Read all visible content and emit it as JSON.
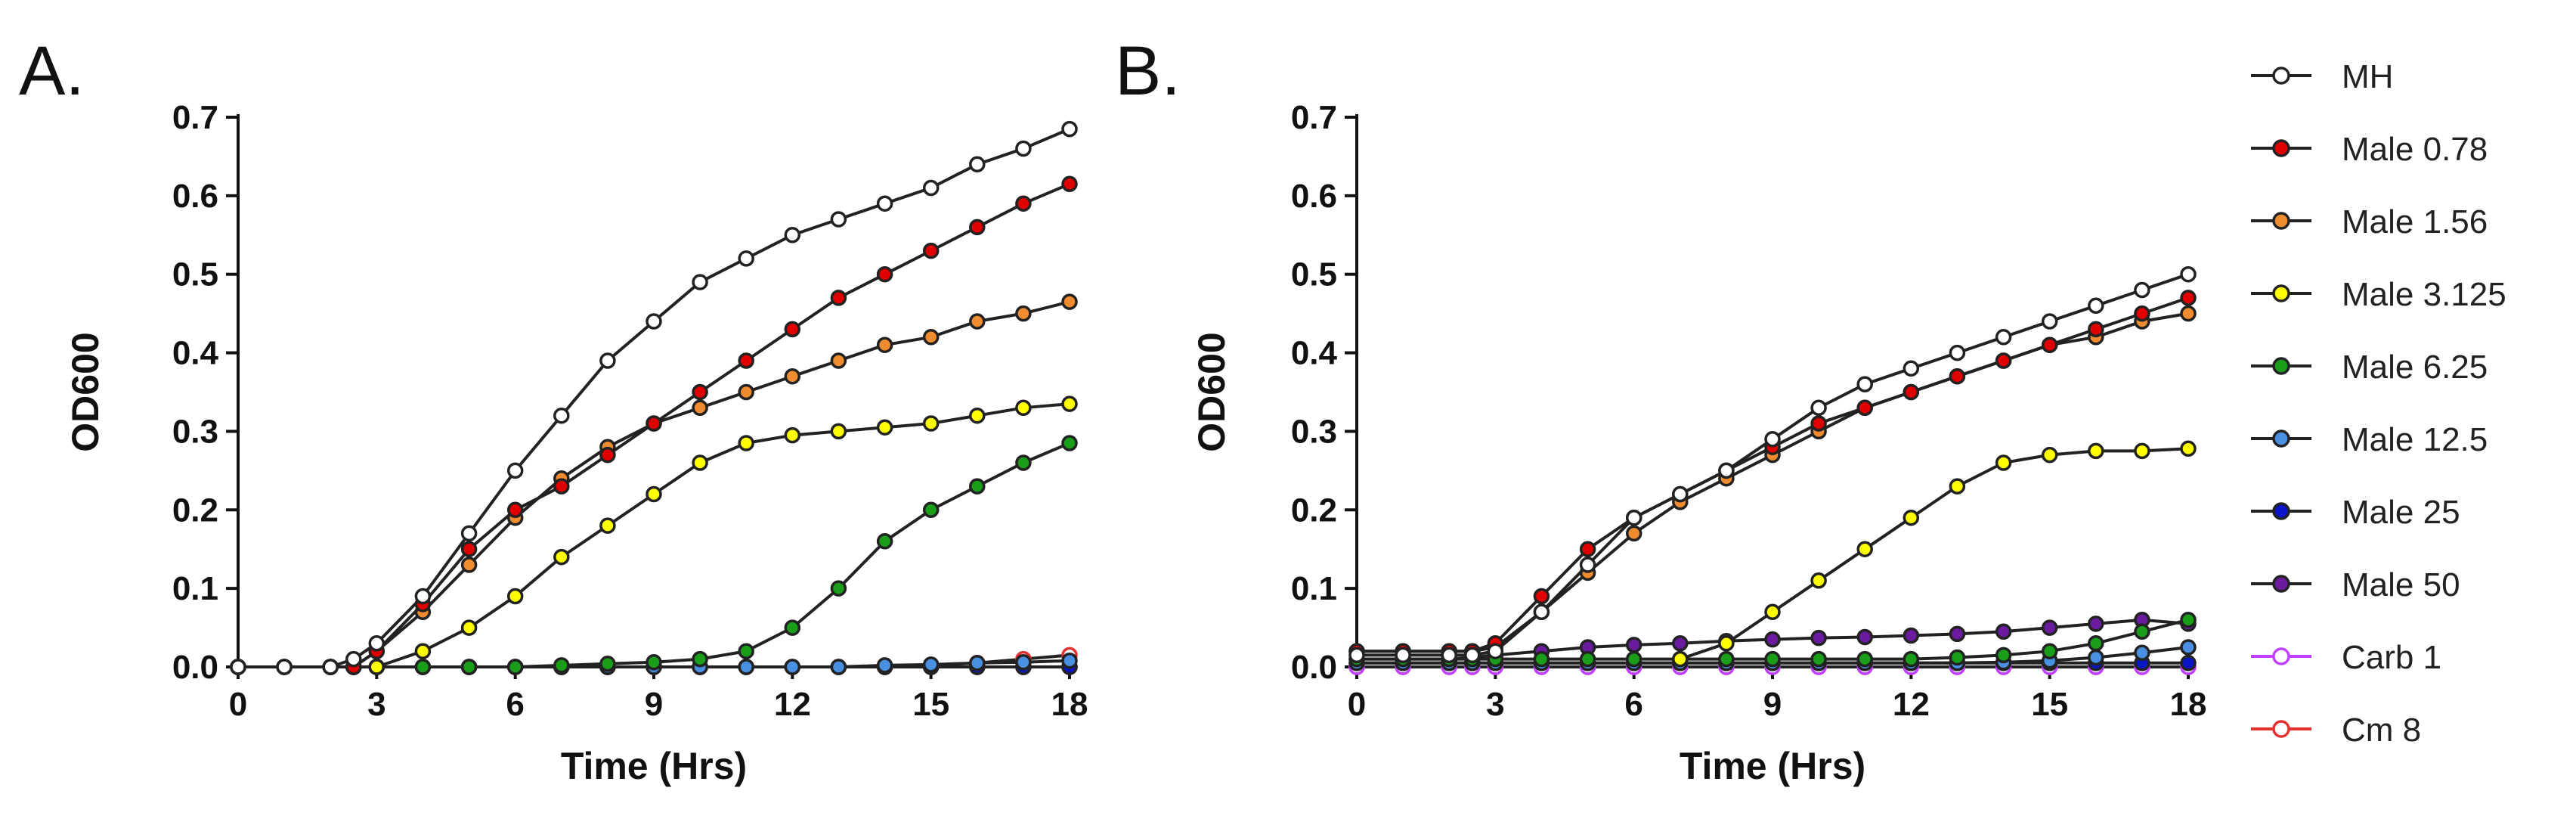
{
  "chart_data": [
    {
      "type": "line",
      "panel": "A.",
      "xlabel": "Time (Hrs)",
      "ylabel": "OD600",
      "xlim": [
        0,
        18
      ],
      "ylim": [
        0,
        0.7
      ],
      "xticks": [
        "0",
        "3",
        "6",
        "9",
        "12",
        "15",
        "18"
      ],
      "yticks": [
        "0.0",
        "0.1",
        "0.2",
        "0.3",
        "0.4",
        "0.5",
        "0.6",
        "0.7"
      ],
      "x": [
        0,
        1,
        2,
        2.5,
        3,
        4,
        5,
        6,
        7,
        8,
        9,
        10,
        11,
        12,
        13,
        14,
        15,
        16,
        17,
        18
      ],
      "series": [
        {
          "name": "MH",
          "values": [
            0.0,
            0.0,
            0.0,
            0.01,
            0.03,
            0.09,
            0.17,
            0.25,
            0.32,
            0.39,
            0.44,
            0.49,
            0.52,
            0.55,
            0.57,
            0.59,
            0.61,
            0.64,
            0.66,
            0.685
          ]
        },
        {
          "name": "Male 0.78",
          "values": [
            0.0,
            0.0,
            0.0,
            0.0,
            0.02,
            0.08,
            0.15,
            0.2,
            0.23,
            0.27,
            0.31,
            0.35,
            0.39,
            0.43,
            0.47,
            0.5,
            0.53,
            0.56,
            0.59,
            0.615
          ]
        },
        {
          "name": "Male 1.56",
          "values": [
            0.0,
            0.0,
            0.0,
            0.0,
            0.02,
            0.07,
            0.13,
            0.19,
            0.24,
            0.28,
            0.31,
            0.33,
            0.35,
            0.37,
            0.39,
            0.41,
            0.42,
            0.44,
            0.45,
            0.465
          ]
        },
        {
          "name": "Male 3.125",
          "values": [
            0.0,
            0.0,
            0.0,
            0.0,
            0.0,
            0.02,
            0.05,
            0.09,
            0.14,
            0.18,
            0.22,
            0.26,
            0.285,
            0.295,
            0.3,
            0.305,
            0.31,
            0.32,
            0.33,
            0.335
          ]
        },
        {
          "name": "Male 6.25",
          "values": [
            0.0,
            0.0,
            0.0,
            0.0,
            0.0,
            0.0,
            0.0,
            0.0,
            0.002,
            0.004,
            0.006,
            0.01,
            0.02,
            0.05,
            0.1,
            0.16,
            0.2,
            0.23,
            0.26,
            0.285
          ]
        },
        {
          "name": "Male 12.5",
          "values": [
            0.0,
            0.0,
            0.0,
            0.0,
            0.0,
            0.0,
            0.0,
            0.0,
            0.0,
            0.0,
            0.0,
            0.0,
            0.0,
            0.0,
            0.0,
            0.002,
            0.003,
            0.005,
            0.006,
            0.008
          ]
        },
        {
          "name": "Male 25",
          "values": [
            0.0,
            0.0,
            0.0,
            0.0,
            0.0,
            0.0,
            0.0,
            0.0,
            0.0,
            0.0,
            0.0,
            0.0,
            0.0,
            0.0,
            0.0,
            0.0,
            0.0,
            0.0,
            0.0,
            0.0
          ]
        },
        {
          "name": "Male 50",
          "values": [
            0.0,
            0.0,
            0.0,
            0.0,
            0.0,
            0.0,
            0.0,
            0.0,
            0.0,
            0.0,
            0.0,
            0.0,
            0.0,
            0.0,
            0.0,
            0.0,
            0.0,
            0.0,
            0.0,
            0.0
          ]
        },
        {
          "name": "Carb 1",
          "values": [
            0.0,
            0.0,
            0.0,
            0.0,
            0.0,
            0.0,
            0.0,
            0.0,
            0.0,
            0.0,
            0.0,
            0.0,
            0.0,
            0.0,
            0.0,
            0.0,
            0.0,
            0.0,
            0.0,
            0.0
          ]
        },
        {
          "name": "Cm 8",
          "values": [
            0.0,
            0.0,
            0.0,
            0.0,
            0.0,
            0.0,
            0.0,
            0.0,
            0.0,
            0.0,
            0.0,
            0.0,
            0.0,
            0.0,
            0.0,
            0.0,
            0.002,
            0.005,
            0.01,
            0.015
          ]
        }
      ]
    },
    {
      "type": "line",
      "panel": "B.",
      "xlabel": "Time (Hrs)",
      "ylabel": "OD600",
      "xlim": [
        0,
        18
      ],
      "ylim": [
        0,
        0.7
      ],
      "xticks": [
        "0",
        "3",
        "6",
        "9",
        "12",
        "15",
        "18"
      ],
      "yticks": [
        "0.0",
        "0.1",
        "0.2",
        "0.3",
        "0.4",
        "0.5",
        "0.6",
        "0.7"
      ],
      "x": [
        0,
        1,
        2,
        2.5,
        3,
        4,
        5,
        6,
        7,
        8,
        9,
        10,
        11,
        12,
        13,
        14,
        15,
        16,
        17,
        18
      ],
      "series": [
        {
          "name": "MH",
          "values": [
            0.015,
            0.015,
            0.015,
            0.015,
            0.02,
            0.07,
            0.13,
            0.19,
            0.22,
            0.25,
            0.29,
            0.33,
            0.36,
            0.38,
            0.4,
            0.42,
            0.44,
            0.46,
            0.48,
            0.5
          ]
        },
        {
          "name": "Male 0.78",
          "values": [
            0.02,
            0.02,
            0.02,
            0.02,
            0.03,
            0.09,
            0.15,
            0.19,
            0.22,
            0.25,
            0.28,
            0.31,
            0.33,
            0.35,
            0.37,
            0.39,
            0.41,
            0.43,
            0.45,
            0.47
          ]
        },
        {
          "name": "Male 1.56",
          "values": [
            0.02,
            0.02,
            0.02,
            0.02,
            0.025,
            0.07,
            0.12,
            0.17,
            0.21,
            0.24,
            0.27,
            0.3,
            0.33,
            0.35,
            0.37,
            0.39,
            0.41,
            0.42,
            0.44,
            0.45
          ]
        },
        {
          "name": "Male 3.125",
          "values": [
            null,
            null,
            null,
            null,
            null,
            null,
            null,
            null,
            0.01,
            0.03,
            0.07,
            0.11,
            0.15,
            0.19,
            0.23,
            0.26,
            0.27,
            0.275,
            0.275,
            0.278
          ]
        },
        {
          "name": "Male 6.25",
          "values": [
            0.01,
            0.01,
            0.01,
            0.01,
            0.01,
            0.01,
            0.01,
            0.01,
            0.01,
            0.01,
            0.01,
            0.01,
            0.01,
            0.01,
            0.012,
            0.015,
            0.02,
            0.03,
            0.045,
            0.06
          ]
        },
        {
          "name": "Male 12.5",
          "values": [
            0.005,
            0.005,
            0.005,
            0.005,
            0.005,
            0.005,
            0.005,
            0.005,
            0.005,
            0.005,
            0.005,
            0.005,
            0.005,
            0.005,
            0.005,
            0.006,
            0.008,
            0.012,
            0.018,
            0.025
          ]
        },
        {
          "name": "Male 25",
          "values": [
            0.005,
            0.005,
            0.005,
            0.005,
            0.005,
            0.005,
            0.005,
            0.005,
            0.005,
            0.005,
            0.005,
            0.005,
            0.005,
            0.005,
            0.005,
            0.005,
            0.005,
            0.005,
            0.005,
            0.005
          ]
        },
        {
          "name": "Male 50",
          "values": [
            0.01,
            0.01,
            0.01,
            0.012,
            0.015,
            0.02,
            0.025,
            0.028,
            0.03,
            0.033,
            0.035,
            0.037,
            0.038,
            0.04,
            0.042,
            0.045,
            0.05,
            0.055,
            0.06,
            0.055
          ]
        },
        {
          "name": "Carb 1",
          "values": [
            0.0,
            0.0,
            0.0,
            0.0,
            0.0,
            0.0,
            0.0,
            0.0,
            0.0,
            0.0,
            0.0,
            0.0,
            0.0,
            0.0,
            0.0,
            0.0,
            0.0,
            0.0,
            0.0,
            0.0
          ]
        },
        {
          "name": "Cm 8",
          "values": [
            0.0,
            0.0,
            0.0,
            0.0,
            0.0,
            0.0,
            0.0,
            0.0,
            0.0,
            0.0,
            0.0,
            0.0,
            0.0,
            0.0,
            0.0,
            0.0,
            0.0,
            0.0,
            0.0,
            0.0
          ]
        }
      ]
    }
  ],
  "legend": {
    "items": [
      {
        "label": "MH",
        "color": "#ffffff"
      },
      {
        "label": "Male 0.78",
        "color": "#e00000"
      },
      {
        "label": "Male 1.56",
        "color": "#f08c30"
      },
      {
        "label": "Male 3.125",
        "color": "#ffff00"
      },
      {
        "label": "Male 6.25",
        "color": "#1a9e1a"
      },
      {
        "label": "Male 12.5",
        "color": "#4a90e2"
      },
      {
        "label": "Male 25",
        "color": "#0a14c8"
      },
      {
        "label": "Male 50",
        "color": "#6a1ba0"
      },
      {
        "label": "Carb 1",
        "color": "#c040ff",
        "hollow": true
      },
      {
        "label": "Cm 8",
        "color": "#e53030",
        "hollow": true
      }
    ]
  }
}
